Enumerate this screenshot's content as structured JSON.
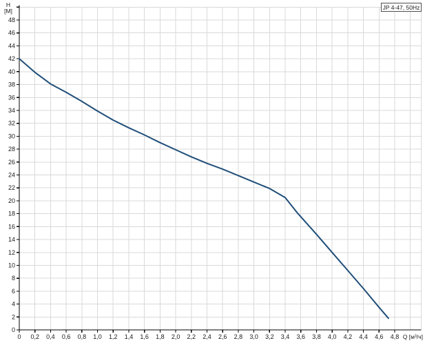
{
  "chart_data": {
    "type": "line",
    "title": "",
    "legend": "JP 4-47, 50Hz",
    "xlabel": "Q [м³/ч]",
    "ylabel_line1": "H",
    "ylabel_line2": "[M]",
    "xlim": [
      0,
      5.14
    ],
    "ylim": [
      0,
      50
    ],
    "grid": true,
    "x_tick_step": 0.2,
    "y_tick_step": 2,
    "x_ticks": [
      0,
      0.2,
      0.4,
      0.6,
      0.8,
      1.0,
      1.2,
      1.4,
      1.6,
      1.8,
      2.0,
      2.2,
      2.4,
      2.6,
      2.8,
      3.0,
      3.2,
      3.4,
      3.6,
      3.8,
      4.0,
      4.2,
      4.4,
      4.6,
      4.8
    ],
    "x_tick_labels": [
      "0",
      "0,2",
      "0,4",
      "0,6",
      "0,8",
      "1,0",
      "1,2",
      "1,4",
      "1,6",
      "1,8",
      "2,0",
      "2,2",
      "2,4",
      "2,6",
      "2,8",
      "3,0",
      "3,2",
      "3,4",
      "3,6",
      "3,8",
      "4,0",
      "4,2",
      "4,4",
      "4,6",
      "4,8"
    ],
    "y_ticks": [
      0,
      2,
      4,
      6,
      8,
      10,
      12,
      14,
      16,
      18,
      20,
      22,
      24,
      26,
      28,
      30,
      32,
      34,
      36,
      38,
      40,
      42,
      44,
      46,
      48
    ],
    "y_tick_labels": [
      "0",
      "2",
      "4",
      "6",
      "8",
      "10",
      "12",
      "14",
      "16",
      "18",
      "20",
      "22",
      "24",
      "26",
      "28",
      "30",
      "32",
      "34",
      "36",
      "38",
      "40",
      "42",
      "44",
      "46",
      "48"
    ],
    "series": [
      {
        "name": "JP 4-47, 50Hz",
        "color": "#1f4e79",
        "points": [
          [
            0,
            42
          ],
          [
            0.2,
            39.9
          ],
          [
            0.4,
            38.1
          ],
          [
            0.6,
            36.8
          ],
          [
            0.8,
            35.4
          ],
          [
            1.0,
            33.9
          ],
          [
            1.2,
            32.5
          ],
          [
            1.4,
            31.3
          ],
          [
            1.6,
            30.2
          ],
          [
            1.8,
            29.0
          ],
          [
            2.0,
            27.9
          ],
          [
            2.2,
            26.8
          ],
          [
            2.4,
            25.8
          ],
          [
            2.6,
            24.9
          ],
          [
            2.8,
            23.9
          ],
          [
            3.0,
            22.9
          ],
          [
            3.2,
            21.9
          ],
          [
            3.4,
            20.5
          ],
          [
            3.55,
            18.2
          ],
          [
            3.8,
            14.8
          ],
          [
            4.0,
            12.0
          ],
          [
            4.2,
            9.2
          ],
          [
            4.4,
            6.4
          ],
          [
            4.6,
            3.5
          ],
          [
            4.72,
            1.8
          ]
        ]
      }
    ],
    "colors": {
      "background": "#ffffff",
      "grid": "#d9d9d9",
      "axis": "#000000",
      "tick_text": "#1a1a1a",
      "curve": "#1f4e79"
    }
  }
}
